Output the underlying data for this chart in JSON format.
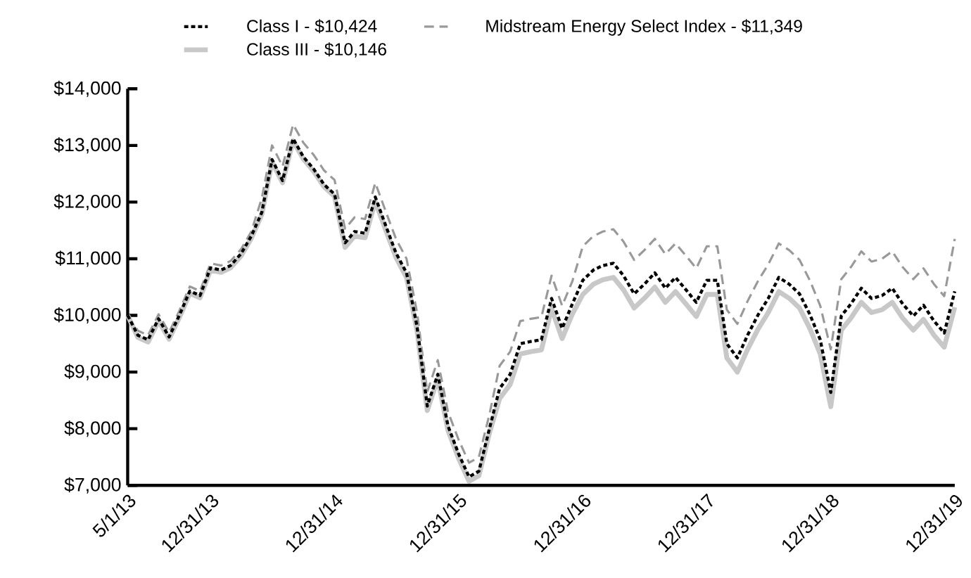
{
  "chart_data": {
    "type": "line",
    "x": [
      "2013-05-01",
      "2013-05-31",
      "2013-06-30",
      "2013-07-31",
      "2013-08-31",
      "2013-09-30",
      "2013-10-31",
      "2013-11-30",
      "2013-12-31",
      "2014-01-31",
      "2014-02-28",
      "2014-03-31",
      "2014-04-30",
      "2014-05-31",
      "2014-06-30",
      "2014-07-31",
      "2014-08-31",
      "2014-09-30",
      "2014-10-31",
      "2014-11-30",
      "2014-12-31",
      "2015-01-31",
      "2015-02-28",
      "2015-03-31",
      "2015-04-30",
      "2015-05-31",
      "2015-06-30",
      "2015-07-31",
      "2015-08-31",
      "2015-09-30",
      "2015-10-31",
      "2015-11-30",
      "2015-12-31",
      "2016-01-31",
      "2016-02-29",
      "2016-03-31",
      "2016-04-30",
      "2016-05-31",
      "2016-06-30",
      "2016-07-31",
      "2016-08-31",
      "2016-09-30",
      "2016-10-31",
      "2016-11-30",
      "2016-12-31",
      "2017-01-31",
      "2017-02-28",
      "2017-03-31",
      "2017-04-30",
      "2017-05-31",
      "2017-06-30",
      "2017-07-31",
      "2017-08-31",
      "2017-09-30",
      "2017-10-31",
      "2017-11-30",
      "2017-12-31",
      "2018-01-31",
      "2018-02-28",
      "2018-03-31",
      "2018-04-30",
      "2018-05-31",
      "2018-06-30",
      "2018-07-31",
      "2018-08-31",
      "2018-09-30",
      "2018-10-31",
      "2018-11-30",
      "2018-12-31",
      "2019-01-31",
      "2019-02-28",
      "2019-03-31",
      "2019-04-30",
      "2019-05-31",
      "2019-06-30",
      "2019-07-31",
      "2019-08-31",
      "2019-09-30",
      "2019-10-31",
      "2019-11-30",
      "2019-12-31"
    ],
    "series": [
      {
        "name": "Class I - $10,424",
        "color": "#000000",
        "line_style": "dotted",
        "values": [
          10000,
          9650,
          9570,
          9940,
          9620,
          10000,
          10430,
          10350,
          10840,
          10800,
          10880,
          11090,
          11400,
          11820,
          12750,
          12380,
          13120,
          12800,
          12580,
          12310,
          12140,
          11280,
          11480,
          11450,
          12090,
          11580,
          11100,
          10750,
          9800,
          8400,
          8960,
          8050,
          7560,
          7150,
          7250,
          8000,
          8710,
          8960,
          9500,
          9540,
          9570,
          10300,
          9770,
          10200,
          10620,
          10800,
          10880,
          10920,
          10700,
          10380,
          10550,
          10750,
          10480,
          10670,
          10450,
          10230,
          10620,
          10620,
          9500,
          9250,
          9650,
          10010,
          10300,
          10670,
          10550,
          10380,
          10010,
          9570,
          8640,
          9990,
          10200,
          10480,
          10300,
          10350,
          10480,
          10200,
          9990,
          10180,
          9900,
          9690,
          10424
        ]
      },
      {
        "name": "Class III - $10,146",
        "color": "#c8c8c8",
        "line_style": "solid",
        "values": [
          10000,
          9610,
          9530,
          9900,
          9580,
          9960,
          10390,
          10310,
          10800,
          10760,
          10840,
          11050,
          11360,
          11780,
          12710,
          12340,
          13080,
          12760,
          12540,
          12270,
          12100,
          11200,
          11400,
          11370,
          12010,
          11500,
          11020,
          10670,
          9720,
          8320,
          8880,
          7970,
          7480,
          7070,
          7170,
          7920,
          8530,
          8780,
          9320,
          9360,
          9390,
          10120,
          9590,
          10020,
          10370,
          10550,
          10630,
          10670,
          10450,
          10130,
          10300,
          10500,
          10230,
          10420,
          10200,
          9980,
          10370,
          10370,
          9250,
          9000,
          9400,
          9760,
          10050,
          10420,
          10300,
          10130,
          9760,
          9320,
          8390,
          9740,
          9950,
          10230,
          10050,
          10100,
          10230,
          9950,
          9740,
          9930,
          9650,
          9440,
          10146
        ]
      },
      {
        "name": "Midstream Energy Select Index - $11,349",
        "color": "#999999",
        "line_style": "dashed",
        "values": [
          10000,
          9730,
          9650,
          10020,
          9700,
          10080,
          10510,
          10430,
          10920,
          10880,
          10960,
          11170,
          11480,
          12070,
          13000,
          12630,
          13370,
          13050,
          12830,
          12560,
          12390,
          11530,
          11730,
          11700,
          12340,
          11830,
          11350,
          11000,
          10050,
          8650,
          9210,
          8300,
          7810,
          7400,
          7500,
          8250,
          9110,
          9360,
          9900,
          9940,
          9970,
          10700,
          10170,
          10600,
          11220,
          11400,
          11480,
          11520,
          11300,
          10980,
          11150,
          11350,
          11080,
          11270,
          11050,
          10830,
          11220,
          11220,
          10100,
          9850,
          10250,
          10610,
          10900,
          11270,
          11150,
          10980,
          10610,
          10170,
          9400,
          10640,
          10850,
          11130,
          10950,
          11000,
          11130,
          10850,
          10640,
          10830,
          10550,
          10340,
          11349
        ]
      }
    ],
    "ylim": [
      7000,
      14000
    ],
    "yticks": [
      {
        "value": 7000,
        "label": "$7,000"
      },
      {
        "value": 8000,
        "label": "$8,000"
      },
      {
        "value": 9000,
        "label": "$9,000"
      },
      {
        "value": 10000,
        "label": "$10,000"
      },
      {
        "value": 11000,
        "label": "$11,000"
      },
      {
        "value": 12000,
        "label": "$12,000"
      },
      {
        "value": 13000,
        "label": "$13,000"
      },
      {
        "value": 14000,
        "label": "$14,000"
      }
    ],
    "xlim": [
      "2013-05-01",
      "2019-12-31"
    ],
    "xticks": [
      {
        "value": "2013-05-01",
        "label": "5/1/13"
      },
      {
        "value": "2013-12-31",
        "label": "12/31/13"
      },
      {
        "value": "2014-12-31",
        "label": "12/31/14"
      },
      {
        "value": "2015-12-31",
        "label": "12/31/15"
      },
      {
        "value": "2016-12-31",
        "label": "12/31/16"
      },
      {
        "value": "2017-12-31",
        "label": "12/31/17"
      },
      {
        "value": "2018-12-31",
        "label": "12/31/18"
      },
      {
        "value": "2019-12-31",
        "label": "12/31/19"
      }
    ],
    "legend": "top",
    "grid": false,
    "marker": "none"
  }
}
